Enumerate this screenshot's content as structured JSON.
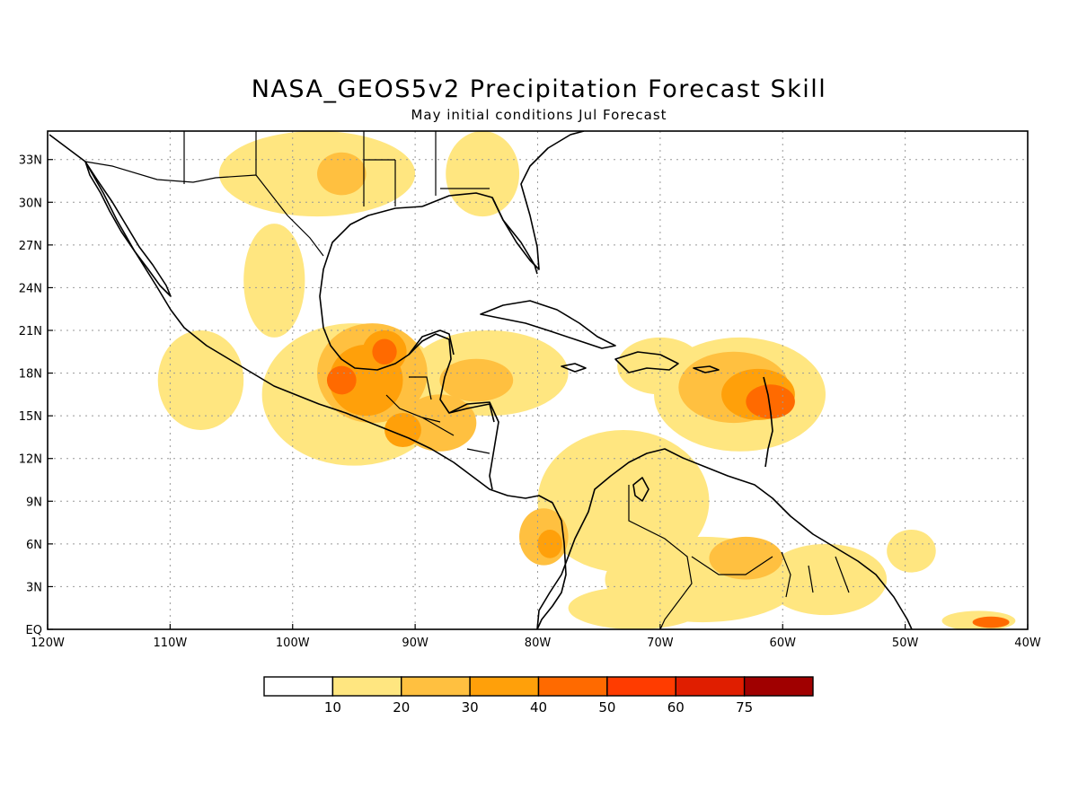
{
  "title": "NASA_GEOS5v2 Precipitation Forecast Skill",
  "subtitle": "May initial conditions  Jul Forecast",
  "map": {
    "lon_range": [
      -120,
      -40
    ],
    "lat_range": [
      0,
      35
    ],
    "lon_ticks": [
      {
        "value": -120,
        "label": "120W"
      },
      {
        "value": -110,
        "label": "110W"
      },
      {
        "value": -100,
        "label": "100W"
      },
      {
        "value": -90,
        "label": "90W"
      },
      {
        "value": -80,
        "label": "80W"
      },
      {
        "value": -70,
        "label": "70W"
      },
      {
        "value": -60,
        "label": "60W"
      },
      {
        "value": -50,
        "label": "50W"
      },
      {
        "value": -40,
        "label": "40W"
      }
    ],
    "lat_ticks": [
      {
        "value": 0,
        "label": "EQ"
      },
      {
        "value": 3,
        "label": "3N"
      },
      {
        "value": 6,
        "label": "6N"
      },
      {
        "value": 9,
        "label": "9N"
      },
      {
        "value": 12,
        "label": "12N"
      },
      {
        "value": 15,
        "label": "15N"
      },
      {
        "value": 18,
        "label": "18N"
      },
      {
        "value": 21,
        "label": "21N"
      },
      {
        "value": 24,
        "label": "24N"
      },
      {
        "value": 27,
        "label": "27N"
      },
      {
        "value": 30,
        "label": "30N"
      },
      {
        "value": 33,
        "label": "33N"
      }
    ],
    "grid": "dotted"
  },
  "colorbar": {
    "levels": [
      "10",
      "20",
      "30",
      "40",
      "50",
      "60",
      "75"
    ],
    "colors": [
      "#ffffff",
      "#ffe680",
      "#ffc040",
      "#ffa00a",
      "#ff6a00",
      "#ff3c00",
      "#e01e00",
      "#a00000"
    ]
  },
  "skill_regions": [
    {
      "level": 1,
      "lon": -107.5,
      "lat": 17.5,
      "rlon": 3.5,
      "rlat": 3.5
    },
    {
      "level": 1,
      "lon": -101.5,
      "lat": 24.5,
      "rlon": 2.5,
      "rlat": 4.0
    },
    {
      "level": 1,
      "lon": -95.0,
      "lat": 16.5,
      "rlon": 7.5,
      "rlat": 5.0
    },
    {
      "level": 1,
      "lon": -84.0,
      "lat": 18.0,
      "rlon": 6.5,
      "rlat": 3.0
    },
    {
      "level": 1,
      "lon": -70.0,
      "lat": 18.5,
      "rlon": 3.5,
      "rlat": 2.0
    },
    {
      "level": 1,
      "lon": -63.5,
      "lat": 16.5,
      "rlon": 7.0,
      "rlat": 4.0
    },
    {
      "level": 1,
      "lon": -73.0,
      "lat": 9.0,
      "rlon": 7.0,
      "rlat": 5.0
    },
    {
      "level": 1,
      "lon": -66.5,
      "lat": 3.5,
      "rlon": 8.0,
      "rlat": 3.0
    },
    {
      "level": 1,
      "lon": -56.5,
      "lat": 3.5,
      "rlon": 5.0,
      "rlat": 2.5
    },
    {
      "level": 1,
      "lon": -98.0,
      "lat": 32.0,
      "rlon": 8.0,
      "rlat": 3.0
    },
    {
      "level": 1,
      "lon": -84.5,
      "lat": 32.0,
      "rlon": 3.0,
      "rlat": 3.0
    },
    {
      "level": 1,
      "lon": -72.0,
      "lat": 1.5,
      "rlon": 5.5,
      "rlat": 1.5
    },
    {
      "level": 1,
      "lon": -44.0,
      "lat": 0.6,
      "rlon": 3.0,
      "rlat": 0.7
    },
    {
      "level": 1,
      "lon": -49.5,
      "lat": 5.5,
      "rlon": 2.0,
      "rlat": 1.5
    },
    {
      "level": 2,
      "lon": -93.5,
      "lat": 18.0,
      "rlon": 4.5,
      "rlat": 3.5
    },
    {
      "level": 2,
      "lon": -88.0,
      "lat": 14.5,
      "rlon": 3.0,
      "rlat": 2.0
    },
    {
      "level": 2,
      "lon": -85.0,
      "lat": 17.5,
      "rlon": 3.0,
      "rlat": 1.5
    },
    {
      "level": 2,
      "lon": -64.0,
      "lat": 17.0,
      "rlon": 4.5,
      "rlat": 2.5
    },
    {
      "level": 2,
      "lon": -79.5,
      "lat": 6.5,
      "rlon": 2.0,
      "rlat": 2.0
    },
    {
      "level": 2,
      "lon": -63.0,
      "lat": 5.0,
      "rlon": 3.0,
      "rlat": 1.5
    },
    {
      "level": 2,
      "lon": -96.0,
      "lat": 32.0,
      "rlon": 2.0,
      "rlat": 1.5
    },
    {
      "level": 3,
      "lon": -94.0,
      "lat": 17.5,
      "rlon": 3.0,
      "rlat": 2.5
    },
    {
      "level": 3,
      "lon": -92.5,
      "lat": 19.5,
      "rlon": 1.8,
      "rlat": 1.5
    },
    {
      "level": 3,
      "lon": -91.0,
      "lat": 14.0,
      "rlon": 1.5,
      "rlat": 1.2
    },
    {
      "level": 3,
      "lon": -62.0,
      "lat": 16.5,
      "rlon": 3.0,
      "rlat": 1.8
    },
    {
      "level": 3,
      "lon": -79.0,
      "lat": 6.0,
      "rlon": 1.0,
      "rlat": 1.0
    },
    {
      "level": 4,
      "lon": -96.0,
      "lat": 17.5,
      "rlon": 1.2,
      "rlat": 1.0
    },
    {
      "level": 4,
      "lon": -92.5,
      "lat": 19.5,
      "rlon": 1.0,
      "rlat": 0.9
    },
    {
      "level": 4,
      "lon": -61.0,
      "lat": 16.0,
      "rlon": 2.0,
      "rlat": 1.2
    },
    {
      "level": 4,
      "lon": -43.0,
      "lat": 0.5,
      "rlon": 1.5,
      "rlat": 0.4
    }
  ]
}
